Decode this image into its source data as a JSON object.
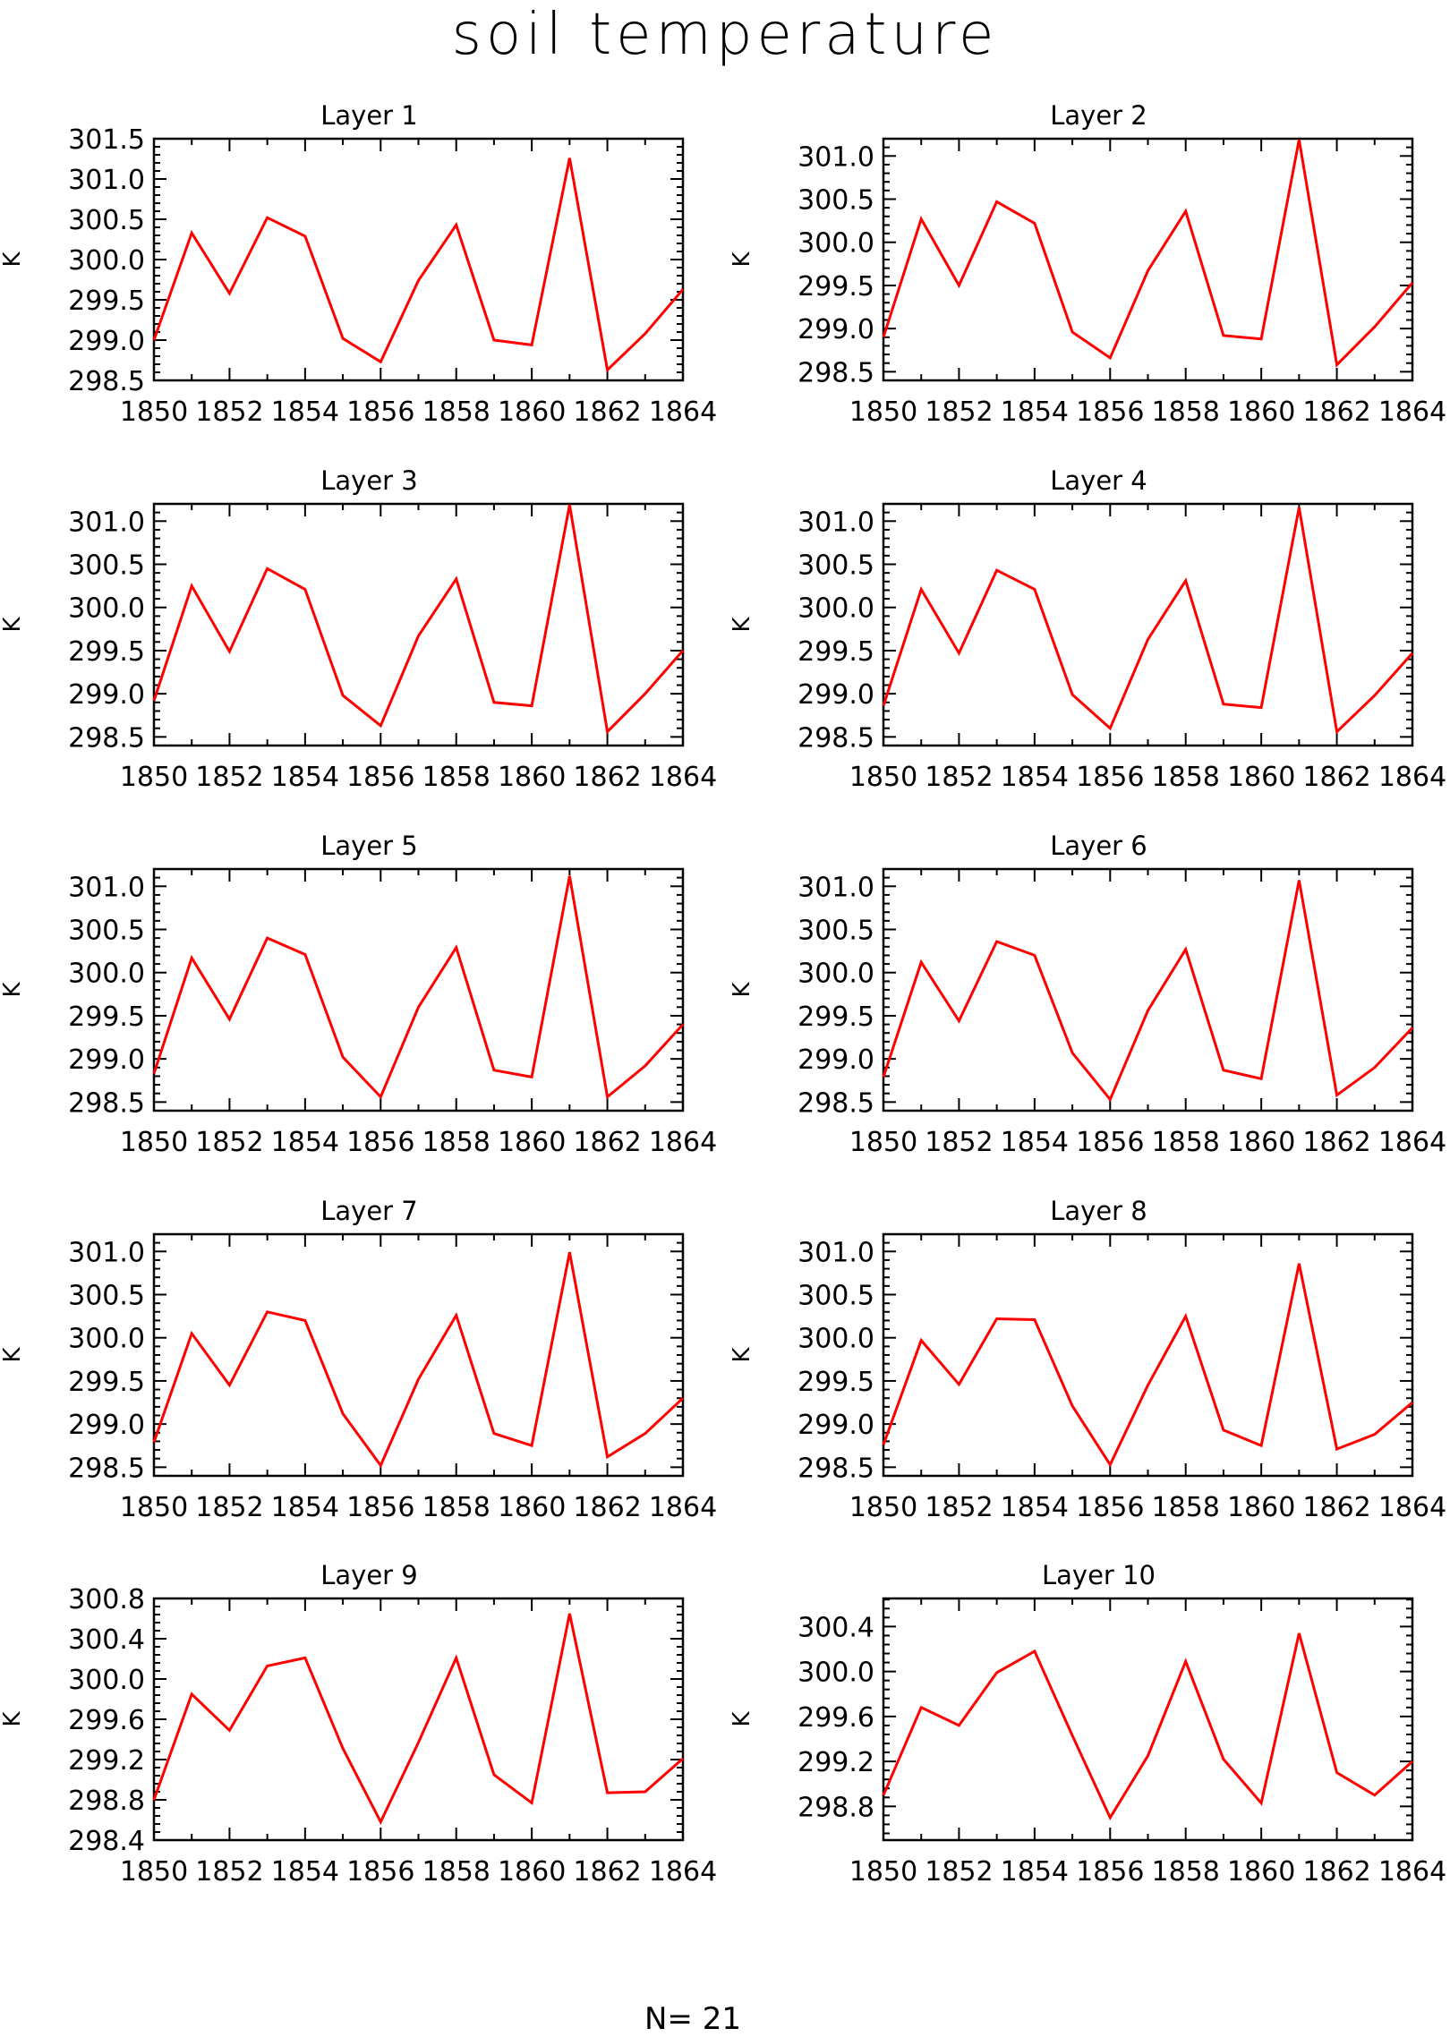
{
  "figure": {
    "title": "soil temperature",
    "footer_note": "N= 21"
  },
  "chart_data": [
    {
      "type": "line",
      "title": "Layer 1",
      "xlabel": "",
      "ylabel": "K",
      "xlim": [
        1850,
        1864
      ],
      "ylim": [
        298.5,
        301.5
      ],
      "x_ticks": [
        1850,
        1852,
        1854,
        1856,
        1858,
        1860,
        1862,
        1864
      ],
      "y_ticks": [
        "298.5",
        "299.0",
        "299.5",
        "300.0",
        "300.5",
        "301.0",
        "301.5"
      ],
      "grid": false,
      "color": "#ff0000",
      "series": [
        {
          "x": [
            1850,
            1851,
            1852,
            1853,
            1854,
            1855,
            1856,
            1857,
            1858,
            1859,
            1860,
            1861,
            1862,
            1863,
            1864
          ],
          "values": [
            299.0,
            300.33,
            299.58,
            300.52,
            300.29,
            299.02,
            298.73,
            299.74,
            300.43,
            299.0,
            298.94,
            301.26,
            298.63,
            299.08,
            299.63
          ]
        }
      ]
    },
    {
      "type": "line",
      "title": "Layer 2",
      "xlabel": "",
      "ylabel": "K",
      "xlim": [
        1850,
        1864
      ],
      "ylim": [
        298.4,
        301.2
      ],
      "x_ticks": [
        1850,
        1852,
        1854,
        1856,
        1858,
        1860,
        1862,
        1864
      ],
      "y_ticks": [
        "298.5",
        "299.0",
        "299.5",
        "300.0",
        "300.5",
        "301.0"
      ],
      "grid": false,
      "color": "#ff0000",
      "series": [
        {
          "x": [
            1850,
            1851,
            1852,
            1853,
            1854,
            1855,
            1856,
            1857,
            1858,
            1859,
            1860,
            1861,
            1862,
            1863,
            1864
          ],
          "values": [
            298.9,
            300.27,
            299.5,
            300.47,
            300.22,
            298.96,
            298.66,
            299.67,
            300.36,
            298.92,
            298.88,
            301.19,
            298.58,
            299.02,
            299.53
          ]
        }
      ]
    },
    {
      "type": "line",
      "title": "Layer 3",
      "xlabel": "",
      "ylabel": "K",
      "xlim": [
        1850,
        1864
      ],
      "ylim": [
        298.4,
        301.2
      ],
      "x_ticks": [
        1850,
        1852,
        1854,
        1856,
        1858,
        1860,
        1862,
        1864
      ],
      "y_ticks": [
        "298.5",
        "299.0",
        "299.5",
        "300.0",
        "300.5",
        "301.0"
      ],
      "grid": false,
      "color": "#ff0000",
      "series": [
        {
          "x": [
            1850,
            1851,
            1852,
            1853,
            1854,
            1855,
            1856,
            1857,
            1858,
            1859,
            1860,
            1861,
            1862,
            1863,
            1864
          ],
          "values": [
            298.92,
            300.25,
            299.49,
            300.45,
            300.21,
            298.98,
            298.63,
            299.67,
            300.33,
            298.9,
            298.86,
            301.19,
            298.56,
            299.0,
            299.5
          ]
        }
      ]
    },
    {
      "type": "line",
      "title": "Layer 4",
      "xlabel": "",
      "ylabel": "K",
      "xlim": [
        1850,
        1864
      ],
      "ylim": [
        298.4,
        301.2
      ],
      "x_ticks": [
        1850,
        1852,
        1854,
        1856,
        1858,
        1860,
        1862,
        1864
      ],
      "y_ticks": [
        "298.5",
        "299.0",
        "299.5",
        "300.0",
        "300.5",
        "301.0"
      ],
      "grid": false,
      "color": "#ff0000",
      "series": [
        {
          "x": [
            1850,
            1851,
            1852,
            1853,
            1854,
            1855,
            1856,
            1857,
            1858,
            1859,
            1860,
            1861,
            1862,
            1863,
            1864
          ],
          "values": [
            298.86,
            300.21,
            299.47,
            300.43,
            300.21,
            298.99,
            298.6,
            299.63,
            300.31,
            298.88,
            298.84,
            301.16,
            298.56,
            298.98,
            299.47
          ]
        }
      ]
    },
    {
      "type": "line",
      "title": "Layer 5",
      "xlabel": "",
      "ylabel": "K",
      "xlim": [
        1850,
        1864
      ],
      "ylim": [
        298.4,
        301.2
      ],
      "x_ticks": [
        1850,
        1852,
        1854,
        1856,
        1858,
        1860,
        1862,
        1864
      ],
      "y_ticks": [
        "298.5",
        "299.0",
        "299.5",
        "300.0",
        "300.5",
        "301.0"
      ],
      "grid": false,
      "color": "#ff0000",
      "series": [
        {
          "x": [
            1850,
            1851,
            1852,
            1853,
            1854,
            1855,
            1856,
            1857,
            1858,
            1859,
            1860,
            1861,
            1862,
            1863,
            1864
          ],
          "values": [
            298.83,
            300.17,
            299.46,
            300.4,
            300.21,
            299.02,
            298.56,
            299.6,
            300.29,
            298.87,
            298.79,
            301.12,
            298.56,
            298.92,
            299.4
          ]
        }
      ]
    },
    {
      "type": "line",
      "title": "Layer 6",
      "xlabel": "",
      "ylabel": "K",
      "xlim": [
        1850,
        1864
      ],
      "ylim": [
        298.4,
        301.2
      ],
      "x_ticks": [
        1850,
        1852,
        1854,
        1856,
        1858,
        1860,
        1862,
        1864
      ],
      "y_ticks": [
        "298.5",
        "299.0",
        "299.5",
        "300.0",
        "300.5",
        "301.0"
      ],
      "grid": false,
      "color": "#ff0000",
      "series": [
        {
          "x": [
            1850,
            1851,
            1852,
            1853,
            1854,
            1855,
            1856,
            1857,
            1858,
            1859,
            1860,
            1861,
            1862,
            1863,
            1864
          ],
          "values": [
            298.79,
            300.12,
            299.44,
            300.36,
            300.2,
            299.07,
            298.53,
            299.56,
            300.27,
            298.87,
            298.77,
            301.07,
            298.58,
            298.9,
            299.36
          ]
        }
      ]
    },
    {
      "type": "line",
      "title": "Layer 7",
      "xlabel": "",
      "ylabel": "K",
      "xlim": [
        1850,
        1864
      ],
      "ylim": [
        298.4,
        301.2
      ],
      "x_ticks": [
        1850,
        1852,
        1854,
        1856,
        1858,
        1860,
        1862,
        1864
      ],
      "y_ticks": [
        "298.5",
        "299.0",
        "299.5",
        "300.0",
        "300.5",
        "301.0"
      ],
      "grid": false,
      "color": "#ff0000",
      "series": [
        {
          "x": [
            1850,
            1851,
            1852,
            1853,
            1854,
            1855,
            1856,
            1857,
            1858,
            1859,
            1860,
            1861,
            1862,
            1863,
            1864
          ],
          "values": [
            298.79,
            300.05,
            299.45,
            300.3,
            300.2,
            299.12,
            298.52,
            299.52,
            300.26,
            298.89,
            298.75,
            300.99,
            298.62,
            298.89,
            299.3
          ]
        }
      ]
    },
    {
      "type": "line",
      "title": "Layer 8",
      "xlabel": "",
      "ylabel": "K",
      "xlim": [
        1850,
        1864
      ],
      "ylim": [
        298.4,
        301.2
      ],
      "x_ticks": [
        1850,
        1852,
        1854,
        1856,
        1858,
        1860,
        1862,
        1864
      ],
      "y_ticks": [
        "298.5",
        "299.0",
        "299.5",
        "300.0",
        "300.5",
        "301.0"
      ],
      "grid": false,
      "color": "#ff0000",
      "series": [
        {
          "x": [
            1850,
            1851,
            1852,
            1853,
            1854,
            1855,
            1856,
            1857,
            1858,
            1859,
            1860,
            1861,
            1862,
            1863,
            1864
          ],
          "values": [
            298.76,
            299.97,
            299.46,
            300.22,
            300.21,
            299.21,
            298.53,
            299.45,
            300.25,
            298.93,
            298.75,
            300.86,
            298.71,
            298.88,
            299.25
          ]
        }
      ]
    },
    {
      "type": "line",
      "title": "Layer 9",
      "xlabel": "",
      "ylabel": "K",
      "xlim": [
        1850,
        1864
      ],
      "ylim": [
        298.4,
        300.8
      ],
      "x_ticks": [
        1850,
        1852,
        1854,
        1856,
        1858,
        1860,
        1862,
        1864
      ],
      "y_ticks": [
        "298.4",
        "298.8",
        "299.2",
        "299.6",
        "300.0",
        "300.4",
        "300.8"
      ],
      "grid": false,
      "color": "#ff0000",
      "series": [
        {
          "x": [
            1850,
            1851,
            1852,
            1853,
            1854,
            1855,
            1856,
            1857,
            1858,
            1859,
            1860,
            1861,
            1862,
            1863,
            1864
          ],
          "values": [
            298.8,
            299.85,
            299.49,
            300.13,
            300.21,
            299.31,
            298.58,
            299.37,
            300.21,
            299.05,
            298.77,
            300.65,
            298.87,
            298.88,
            299.21
          ]
        }
      ]
    },
    {
      "type": "line",
      "title": "Layer 10",
      "xlabel": "",
      "ylabel": "K",
      "xlim": [
        1850,
        1864
      ],
      "ylim": [
        298.5,
        300.65
      ],
      "x_ticks": [
        1850,
        1852,
        1854,
        1856,
        1858,
        1860,
        1862,
        1864
      ],
      "y_ticks": [
        "298.8",
        "299.2",
        "299.6",
        "300.0",
        "300.4"
      ],
      "grid": false,
      "color": "#ff0000",
      "series": [
        {
          "x": [
            1850,
            1851,
            1852,
            1853,
            1854,
            1855,
            1856,
            1857,
            1858,
            1859,
            1860,
            1861,
            1862,
            1863,
            1864
          ],
          "values": [
            298.9,
            299.68,
            299.52,
            299.99,
            300.18,
            299.43,
            298.7,
            299.25,
            300.09,
            299.22,
            298.83,
            300.34,
            299.1,
            298.9,
            299.2
          ]
        }
      ]
    }
  ]
}
